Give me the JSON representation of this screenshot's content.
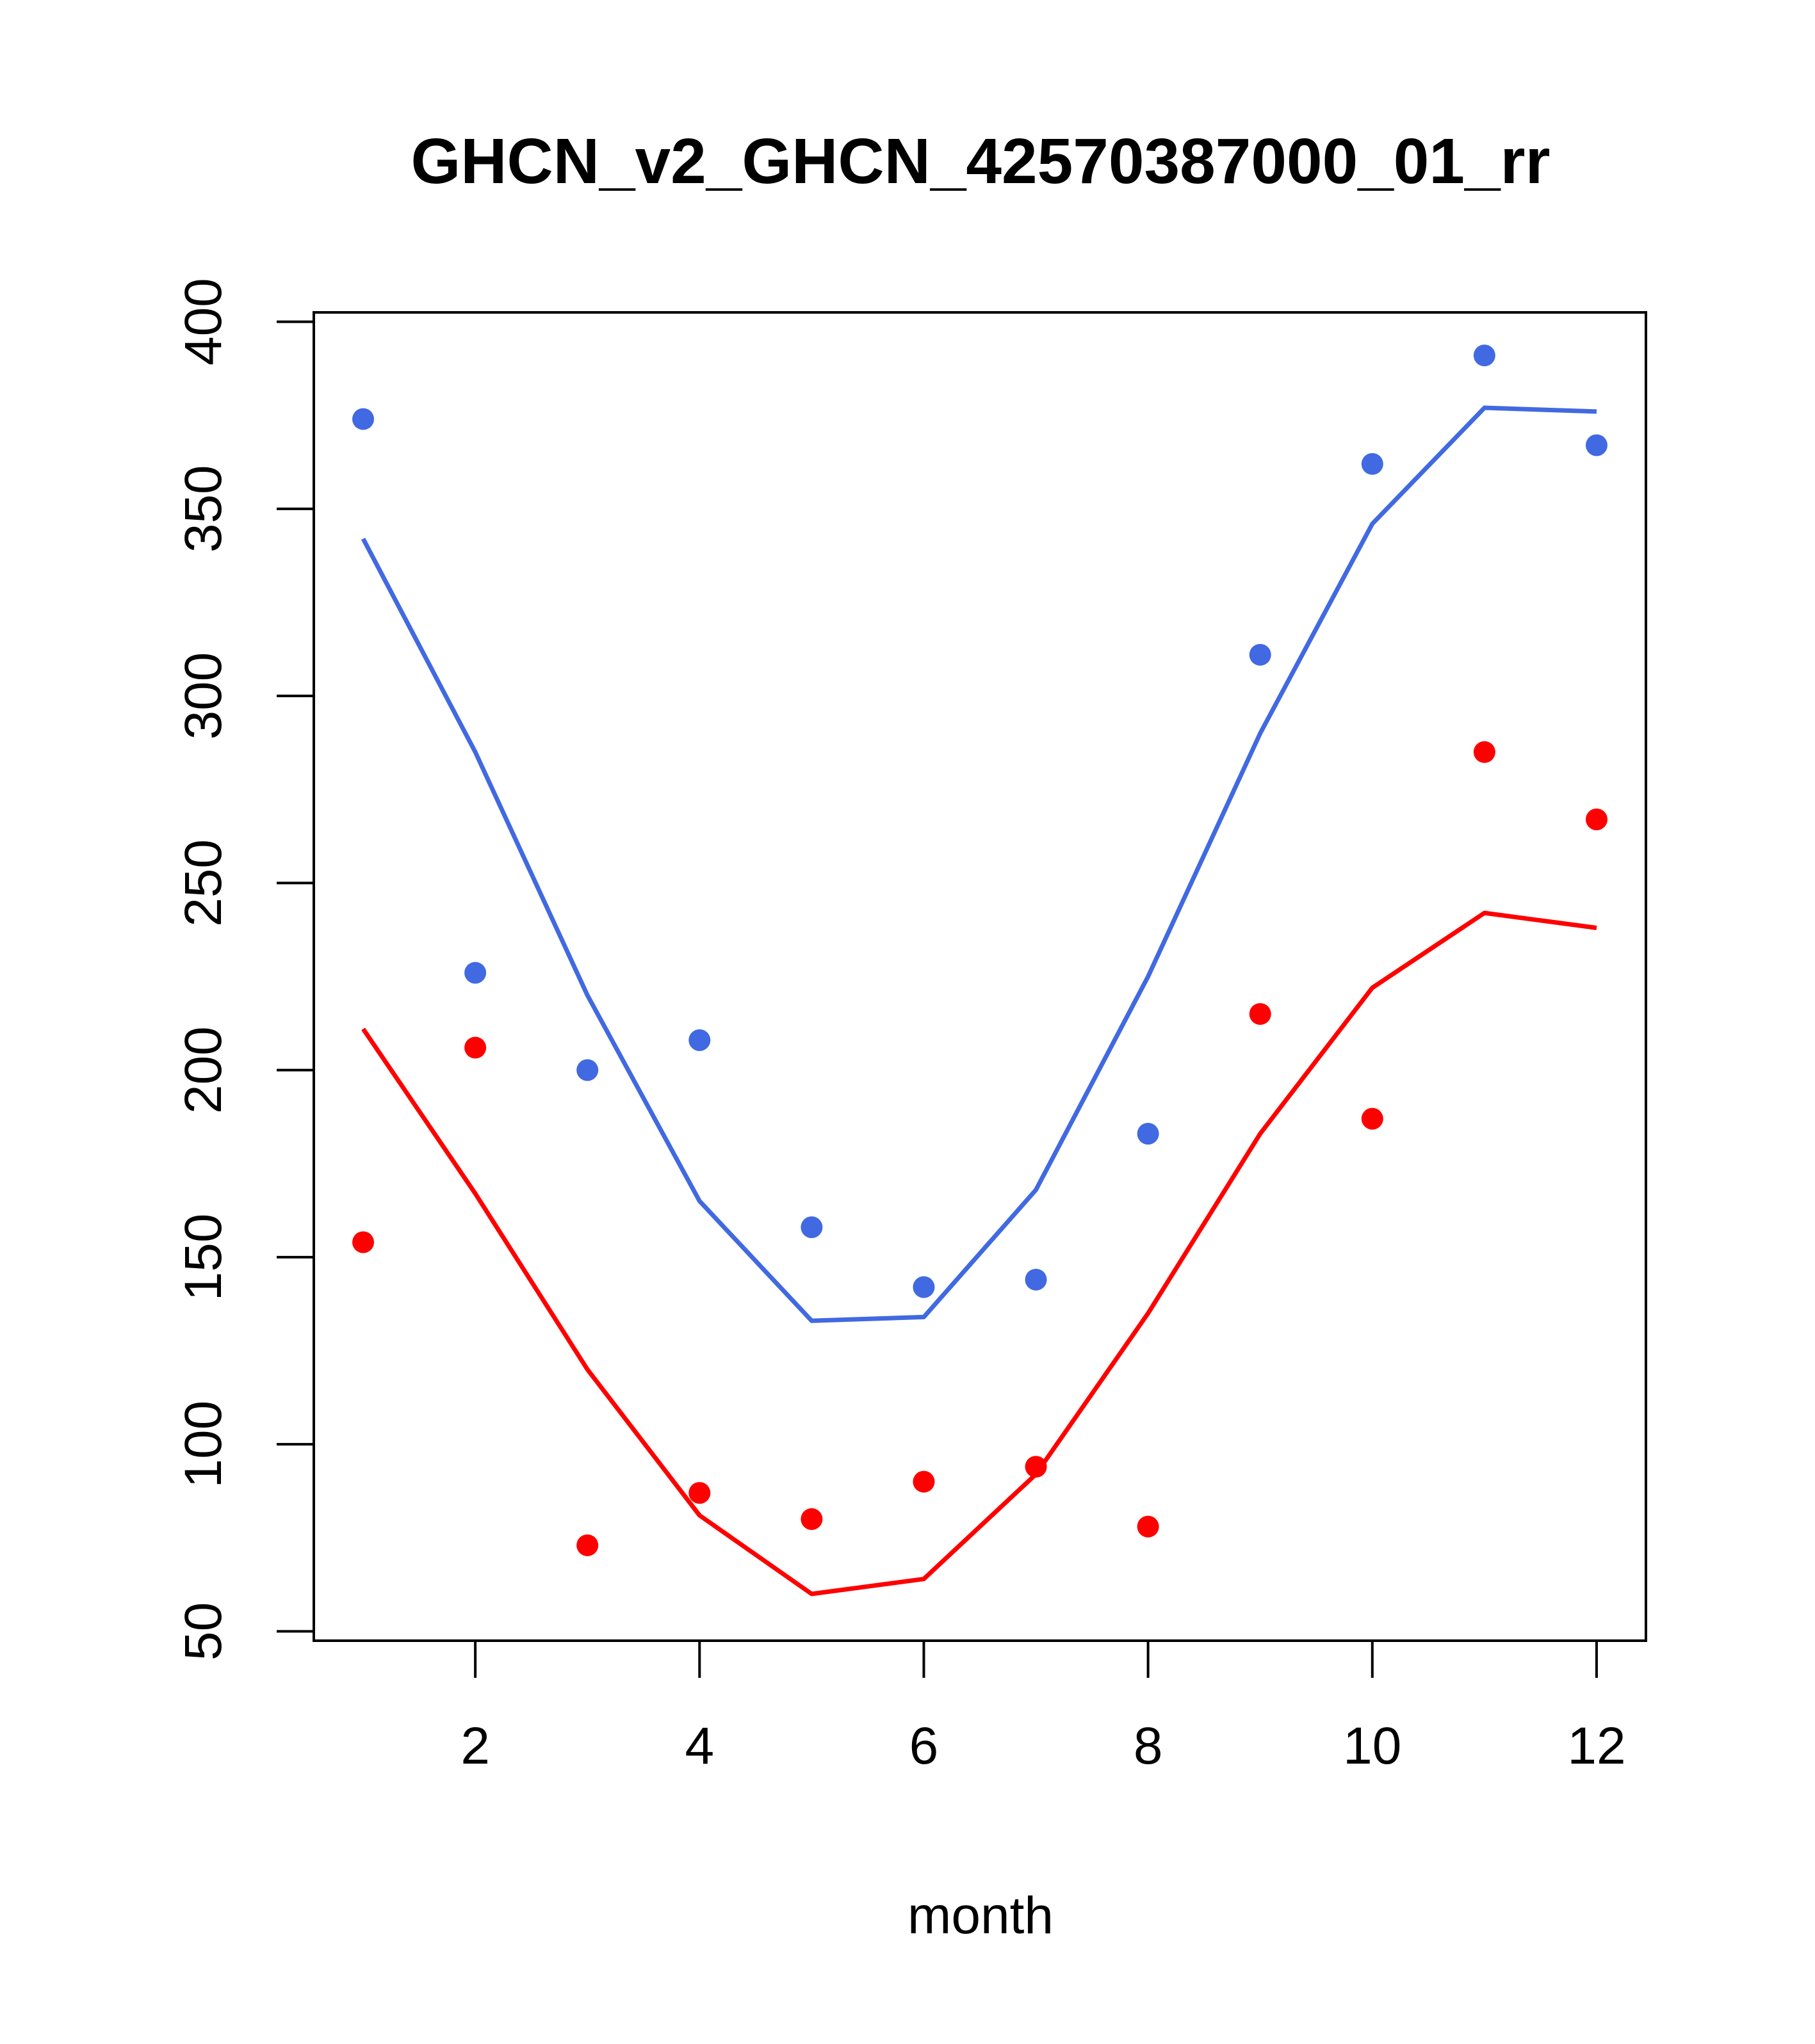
{
  "chart_data": {
    "type": "line",
    "title": "GHCN_v2_GHCN_42570387000_01_rr",
    "xlabel": "month",
    "ylabel": "",
    "xlim": [
      0.56,
      12.44
    ],
    "ylim": [
      47.5,
      402.5
    ],
    "x_ticks": [
      2,
      4,
      6,
      8,
      10,
      12
    ],
    "y_ticks": [
      50,
      100,
      150,
      200,
      250,
      300,
      350,
      400
    ],
    "grid": false,
    "legend": "none",
    "series": [
      {
        "color": "#4169E1",
        "points_x": [
          1,
          2,
          3,
          4,
          5,
          6,
          7,
          8,
          9,
          10,
          11,
          12
        ],
        "points_y": [
          374,
          226,
          200,
          208,
          158,
          142,
          144,
          183,
          311,
          362,
          391,
          367
        ],
        "line_x": [
          1,
          2,
          3,
          4,
          5,
          6,
          7,
          8,
          9,
          10,
          11,
          12
        ],
        "line_y": [
          342,
          285,
          220,
          165,
          133,
          134,
          168,
          225,
          290,
          346,
          377,
          376
        ]
      },
      {
        "color": "#FF0000",
        "points_x": [
          1,
          2,
          3,
          4,
          5,
          6,
          7,
          8,
          9,
          10,
          11,
          12
        ],
        "points_y": [
          154,
          206,
          73,
          87,
          80,
          90,
          94,
          78,
          215,
          187,
          285,
          267
        ],
        "line_x": [
          1,
          2,
          3,
          4,
          5,
          6,
          7,
          8,
          9,
          10,
          11,
          12
        ],
        "line_y": [
          211,
          167,
          120,
          81,
          60,
          64,
          92,
          135,
          183,
          222,
          242,
          238
        ]
      }
    ]
  }
}
